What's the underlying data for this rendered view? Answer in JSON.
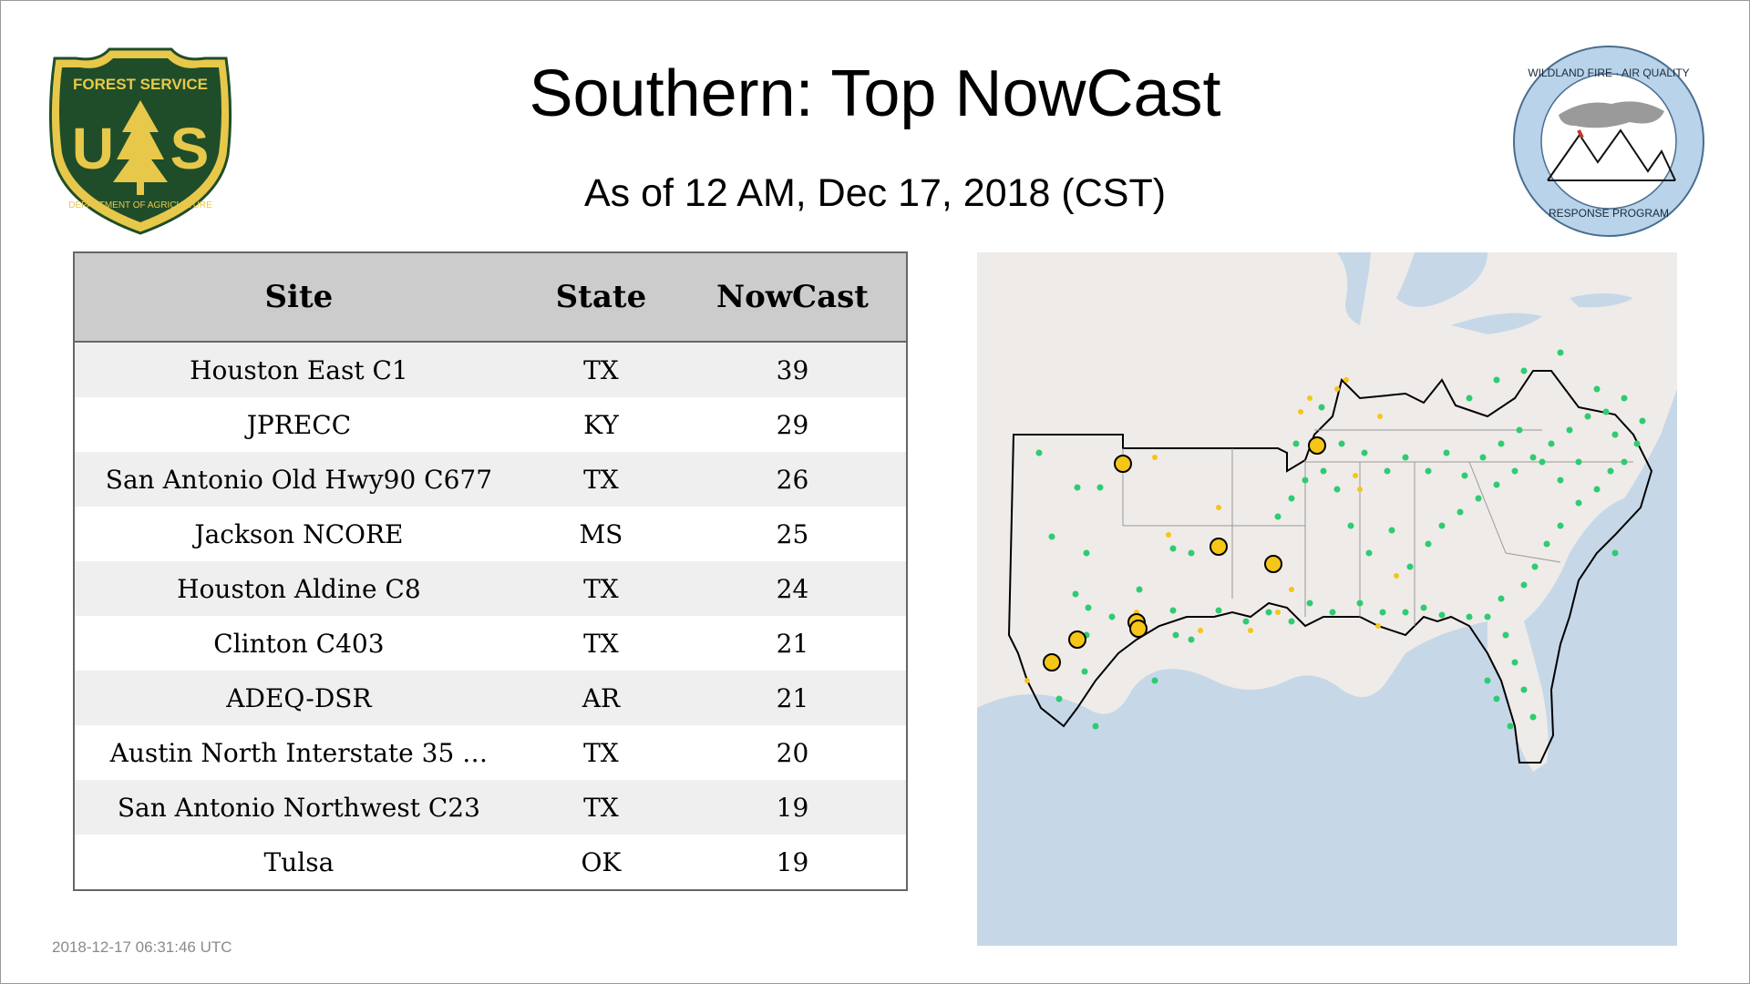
{
  "header": {
    "title": "Southern: Top NowCast",
    "subtitle": "As of 12 AM, Dec 17, 2018 (CST)"
  },
  "logos": {
    "forest_service": {
      "icon": "forest-service-shield-logo",
      "text_top": "FOREST SERVICE",
      "text_bottom": "DEPARTMENT OF AGRICULTURE",
      "letters": "US",
      "colors": {
        "green": "#1f4d2a",
        "gold": "#e8c84a"
      }
    },
    "wildland_fire": {
      "icon": "wildland-fire-air-quality-seal",
      "text_top": "WILDLAND FIRE · AIR QUALITY",
      "text_bottom": "RESPONSE PROGRAM",
      "colors": {
        "ring": "#b9d3ea"
      }
    }
  },
  "table": {
    "columns": [
      "Site",
      "State",
      "NowCast"
    ],
    "rows": [
      {
        "site": "Houston East C1",
        "state": "TX",
        "nowcast": "39"
      },
      {
        "site": "JPRECC",
        "state": "KY",
        "nowcast": "29"
      },
      {
        "site": "San Antonio Old Hwy90 C677",
        "state": "TX",
        "nowcast": "26"
      },
      {
        "site": "Jackson NCORE",
        "state": "MS",
        "nowcast": "25"
      },
      {
        "site": "Houston Aldine C8",
        "state": "TX",
        "nowcast": "24"
      },
      {
        "site": "Clinton C403",
        "state": "TX",
        "nowcast": "21"
      },
      {
        "site": "ADEQ-DSR",
        "state": "AR",
        "nowcast": "21"
      },
      {
        "site": "Austin North Interstate 35 …",
        "state": "TX",
        "nowcast": "20"
      },
      {
        "site": "San Antonio Northwest C23",
        "state": "TX",
        "nowcast": "19"
      },
      {
        "site": "Tulsa",
        "state": "OK",
        "nowcast": "19"
      }
    ]
  },
  "map": {
    "icon": "southern-region-monitor-map",
    "colors": {
      "land": "#efebe8",
      "water": "#c6d8e8",
      "good": "#2ecc71",
      "moderate": "#f5c518",
      "region_outline": "#000000"
    }
  },
  "footer": {
    "timestamp": "2018-12-17 06:31:46 UTC"
  }
}
